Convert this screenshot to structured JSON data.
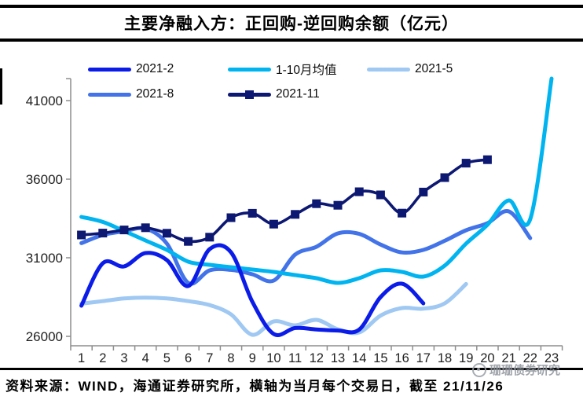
{
  "page": {
    "title": "主要净融入方：正回购-逆回购余额（亿元）",
    "source": "资料来源：WIND，海通证券研究所，横轴为当月每个交易日，截至 21/11/26",
    "watermark": "珊珊债券研究"
  },
  "chart_data": {
    "type": "line",
    "title": "主要净融入方：正回购-逆回购余额（亿元）",
    "xlabel": "当月每个交易日",
    "ylabel": "亿元",
    "categories": [
      1,
      2,
      3,
      4,
      5,
      6,
      7,
      8,
      9,
      10,
      11,
      12,
      13,
      14,
      15,
      16,
      17,
      18,
      19,
      20,
      21,
      22,
      23
    ],
    "ylim": [
      26000,
      41000
    ],
    "yticks": [
      26000,
      31000,
      36000,
      41000
    ],
    "grid": false,
    "legend_position": "top",
    "axis_color": "#8e8e8e",
    "label_color": "#1f1f1f",
    "series": [
      {
        "name": "2021-2",
        "color": "#0b1ce8",
        "marker": false,
        "values": [
          27950,
          30650,
          30450,
          31300,
          30850,
          29200,
          31550,
          31350,
          28200,
          26150,
          26530,
          26440,
          26370,
          26430,
          28500,
          29350,
          28100
        ]
      },
      {
        "name": "1-10月均值",
        "color": "#00b4f0",
        "marker": false,
        "values": [
          33600,
          33280,
          32700,
          32100,
          31500,
          30750,
          30550,
          30400,
          30250,
          30100,
          29900,
          29700,
          29400,
          29700,
          30200,
          30100,
          29800,
          30500,
          31900,
          33100,
          34650,
          33450,
          42400
        ]
      },
      {
        "name": "2021-5",
        "color": "#9fc8f2",
        "marker": false,
        "values": [
          28080,
          28240,
          28410,
          28460,
          28410,
          28240,
          27990,
          27400,
          26100,
          26950,
          26700,
          27050,
          26450,
          26250,
          27320,
          27800,
          27760,
          28100,
          29330
        ]
      },
      {
        "name": "2021-8",
        "color": "#4273e8",
        "marker": false,
        "values": [
          31930,
          32450,
          32690,
          32855,
          31900,
          29400,
          30200,
          30230,
          29950,
          29550,
          31200,
          31700,
          32550,
          32520,
          31840,
          31340,
          31500,
          32080,
          32750,
          33200,
          33950,
          32250
        ]
      },
      {
        "name": "2021-11",
        "color": "#0d1873",
        "marker": true,
        "values": [
          32450,
          32570,
          32770,
          32910,
          32560,
          32040,
          32310,
          33550,
          33830,
          33140,
          33760,
          34440,
          34340,
          35200,
          35000,
          33840,
          35180,
          36100,
          37020,
          37240
        ]
      }
    ]
  }
}
